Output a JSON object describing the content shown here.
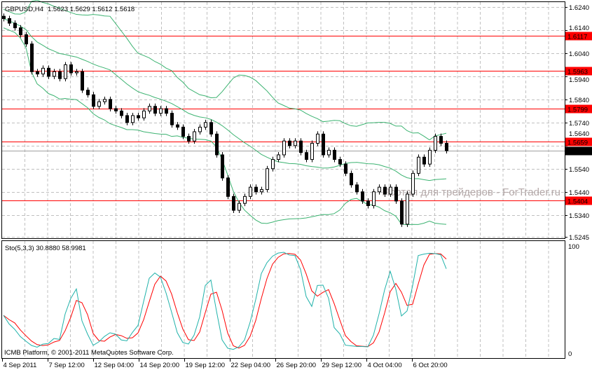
{
  "window": {
    "symbol_title": "GBPUSD,H4",
    "ohlc_readout": "1.5623 1.5629 1.5612 1.5618",
    "indicator_title": "Sto(5,3,3) 30.8880 58.9981",
    "copyright": "ICMB Platform, © 2001-2011 MetaQuotes Software Corp.",
    "watermark": "Портал для трейдеров - ForTrader.ru"
  },
  "colors": {
    "candle": "#000000",
    "bands": "#3cb371",
    "levels": "#ff0000",
    "stoch_main": "#20b2aa",
    "stoch_signal": "#ff0000",
    "grid": "#c0c0c0",
    "current_price_label": "#000000"
  },
  "chart_data": [
    {
      "type": "candlestick",
      "title": "GBPUSD,H4",
      "ylim": [
        1.5245,
        1.624
      ],
      "y_ticks": [
        "1.6240",
        "1.6140",
        "1.6040",
        "1.5940",
        "1.5840",
        "1.5740",
        "1.5640",
        "1.5540",
        "1.5440",
        "1.5340",
        "1.5245"
      ],
      "x_ticks": [
        "4 Sep 2011",
        "7 Sep 12:00",
        "12 Sep 04:00",
        "14 Sep 20:00",
        "19 Sep 12:00",
        "22 Sep 04:00",
        "26 Sep 20:00",
        "29 Sep 12:00",
        "4 Oct 04:00",
        "6 Oct 20:00"
      ],
      "grid": true,
      "closes": [
        1.619,
        1.617,
        1.615,
        1.612,
        1.608,
        1.596,
        1.595,
        1.5975,
        1.594,
        1.596,
        1.593,
        1.599,
        1.5955,
        1.596,
        1.588,
        1.586,
        1.581,
        1.583,
        1.584,
        1.58,
        1.579,
        1.577,
        1.574,
        1.577,
        1.576,
        1.579,
        1.581,
        1.578,
        1.58,
        1.578,
        1.573,
        1.572,
        1.568,
        1.566,
        1.57,
        1.572,
        1.574,
        1.569,
        1.56,
        1.55,
        1.542,
        1.536,
        1.539,
        1.542,
        1.546,
        1.544,
        1.545,
        1.554,
        1.558,
        1.56,
        1.566,
        1.564,
        1.566,
        1.561,
        1.558,
        1.565,
        1.569,
        1.56,
        1.562,
        1.558,
        1.556,
        1.552,
        1.547,
        1.544,
        1.54,
        1.538,
        1.544,
        1.546,
        1.543,
        1.546,
        1.54,
        1.53,
        1.543,
        1.552,
        1.559,
        1.556,
        1.562,
        1.568,
        1.565,
        1.5618
      ],
      "bollinger_bands": {
        "period": 20,
        "deviation": 2
      },
      "horizontal_levels": [
        {
          "price": 1.6117,
          "label": "1.6117"
        },
        {
          "price": 1.5963,
          "label": "1.5963"
        },
        {
          "price": 1.5799,
          "label": "1.5799"
        },
        {
          "price": 1.5659,
          "label": "1.5659"
        },
        {
          "price": 1.5404,
          "label": "1.5404"
        }
      ],
      "current_price": {
        "price": 1.5618,
        "label": "1.5618"
      }
    },
    {
      "type": "line",
      "title": "Sto(5,3,3) 30.8880 58.9981",
      "ylim": [
        0,
        100
      ],
      "y_ticks": [
        "100",
        "0"
      ],
      "params": {
        "k": 5,
        "d": 3,
        "slowing": 3
      },
      "series": [
        "main",
        "signal"
      ]
    }
  ]
}
